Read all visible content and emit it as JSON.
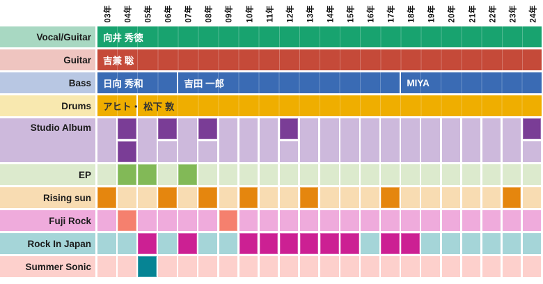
{
  "chart_data": {
    "type": "heatmap",
    "title": "",
    "x": [
      "03年",
      "04年",
      "05年",
      "06年",
      "07年",
      "08年",
      "09年",
      "10年",
      "11年",
      "12年",
      "13年",
      "14年",
      "15年",
      "16年",
      "17年",
      "18年",
      "19年",
      "20年",
      "21年",
      "22年",
      "23年",
      "24年"
    ],
    "x_axis_position": "top",
    "x_tick_rotation": -90,
    "grid": "white gaps between year columns",
    "legend": "none",
    "member_rows": [
      {
        "label": "Vocal/Guitar",
        "label_bg": "#a8d8c2",
        "bar_color": "#18a36f",
        "text_color": "#ffffff",
        "bars": [
          {
            "name": "向井 秀徳",
            "start": "03年",
            "end": "24年",
            "start_index": 0,
            "span": 22
          }
        ]
      },
      {
        "label": "Guitar",
        "label_bg": "#efc5c0",
        "bar_color": "#c54a39",
        "text_color": "#ffffff",
        "bars": [
          {
            "name": "吉兼 聡",
            "start": "03年",
            "end": "24年",
            "start_index": 0,
            "span": 22
          }
        ]
      },
      {
        "label": "Bass",
        "label_bg": "#b8c7e3",
        "bar_color": "#3a6bb4",
        "text_color": "#ffffff",
        "bars": [
          {
            "name": "日向 秀和",
            "start": "03年",
            "end": "06年",
            "start_index": 0,
            "span": 4
          },
          {
            "name": "吉田 一郎",
            "start": "07年",
            "end": "17年",
            "start_index": 4,
            "span": 11
          },
          {
            "name": "MIYA",
            "start": "18年",
            "end": "24年",
            "start_index": 15,
            "span": 7
          }
        ]
      },
      {
        "label": "Drums",
        "label_bg": "#f8e8af",
        "bar_color": "#efae00",
        "text_color": "#333333",
        "bars": [
          {
            "name": "アヒト・",
            "start": "03年",
            "end": "04年",
            "start_index": 0,
            "span": 2
          },
          {
            "name": "松下 敦",
            "start": "05年",
            "end": "24年",
            "start_index": 2,
            "span": 20
          }
        ]
      }
    ],
    "event_rows": [
      {
        "label": "Studio Album",
        "row_bg": "#cdb9dc",
        "cell_color": "#7a3d96",
        "lanes": [
          [
            "04年",
            "06年",
            "08年",
            "12年",
            "24年"
          ],
          [
            "04年"
          ]
        ]
      },
      {
        "label": "EP",
        "row_bg": "#dceacd",
        "cell_color": "#82b957",
        "lanes": [
          [
            "04年",
            "05年",
            "07年"
          ]
        ]
      },
      {
        "label": "Rising sun",
        "row_bg": "#f8dcb2",
        "cell_color": "#e5860e",
        "lanes": [
          [
            "03年",
            "06年",
            "08年",
            "10年",
            "13年",
            "17年",
            "23年"
          ]
        ]
      },
      {
        "label": "Fuji Rock",
        "row_bg": "#efabdc",
        "cell_color": "#f5806e",
        "lanes": [
          [
            "04年",
            "09年"
          ]
        ]
      },
      {
        "label": "Rock In Japan",
        "row_bg": "#a5d5d8",
        "cell_color": "#cc2093",
        "lanes": [
          [
            "05年",
            "07年",
            "10年",
            "11年",
            "12年",
            "13年",
            "14年",
            "15年",
            "17年",
            "18年"
          ]
        ]
      },
      {
        "label": "Summer Sonic",
        "row_bg": "#fdd0cc",
        "cell_color": "#068494",
        "lanes": [
          [
            "05年"
          ]
        ]
      }
    ]
  }
}
